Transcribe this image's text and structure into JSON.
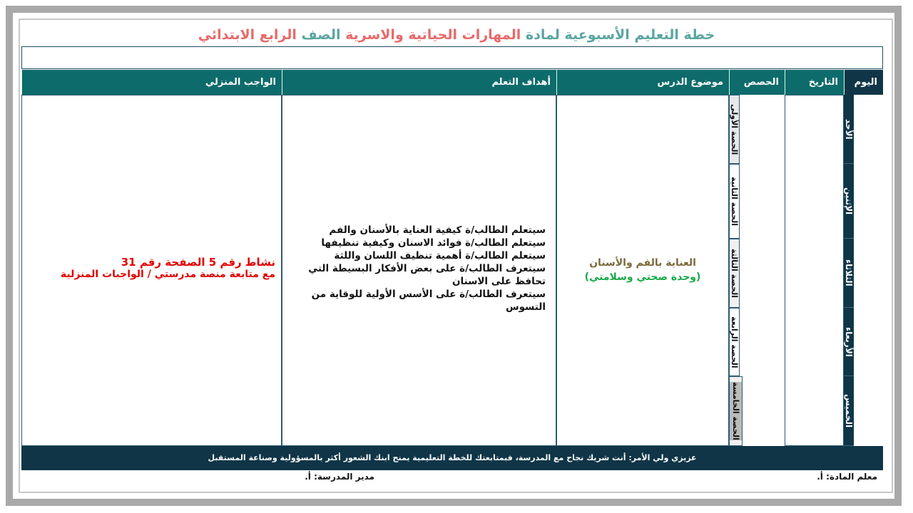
{
  "title": {
    "part1": "خطة التعليم الأسبوعية لمادة ",
    "part2": "المهارات الحياتية والاسرية",
    "part3": " الصف ",
    "part4": "الرابع الابتدائي"
  },
  "colors": {
    "header": "#0e6b6b",
    "day_column": "#0f3547",
    "title_teal": "#5aa6a0",
    "title_pink": "#e86a6a",
    "homework": "#e00000",
    "topic_title": "#7a6a3a",
    "unit": "#1aa84a"
  },
  "headers": {
    "day": "اليوم",
    "date": "التاريخ",
    "periods": "الحصص",
    "topic": "موضوع الدرس",
    "objectives": "أهداف التعلم",
    "homework": "الواجب المنزلي"
  },
  "days": [
    "الأحد",
    "الإثنين",
    "الثلاثاء",
    "الأربعاء",
    "الخميس"
  ],
  "periods": [
    "الحصة الأولى",
    "الحصة الثانية",
    "الحصة الثالثة",
    "الحصة الرابعة",
    "الحصة الخامسة"
  ],
  "topic": {
    "title": "العناية بالفم والأسنان",
    "unit": "(وحدة صحتي وسلامتي)"
  },
  "objectives": [
    "سيتعلم الطالب/ة كيفية العناية بالأسنان والفم",
    "سيتعلم الطالب/ة فوائد الاسنان وكيفية تنظيفها",
    "سيتعلم الطالب/ة أهمية تنظيف اللسان واللثة",
    "سيتعرف الطالب/ة على بعض الأفكار البسيطة التي تحافظ على الاسنان",
    "سيتعرف الطالب/ة على الأسس الأولية للوقاية من التسوس"
  ],
  "homework": {
    "line1": "نشاط رقم 5 الصفحة رقم 31",
    "line2": "مع متابعة منصة مدرستي / الواجبات المنزلية"
  },
  "footer": "عزيزي ولي الأمر: أنت شريك نجاح مع المدرسة، فبمتابعتك للخطة التعليمية يمنح ابنك الشعور أكثر بالمسؤولية وصناعة المستقبل",
  "signatures": {
    "teacher": "معلم المادة: أ.",
    "principal": "مدير المدرسة: أ."
  }
}
